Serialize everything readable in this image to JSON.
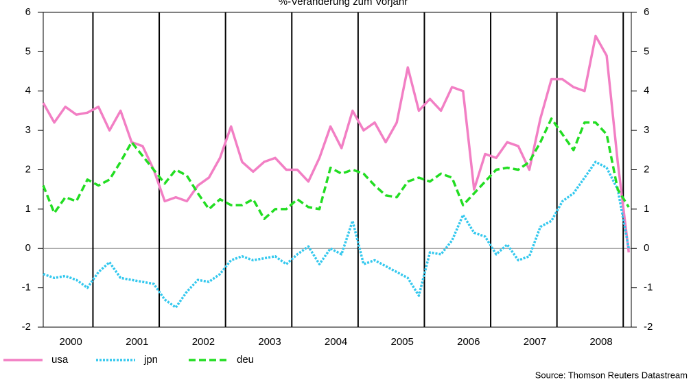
{
  "chart_data": {
    "type": "line",
    "title": "%-Veränderung zum Vorjahr",
    "source": "Source: Thomson Reuters Datastream",
    "categories": [
      null,
      null,
      "2000",
      null,
      null,
      null,
      null,
      null,
      "2001",
      null,
      null,
      null,
      null,
      null,
      "2002",
      null,
      null,
      null,
      null,
      null,
      "2003",
      null,
      null,
      null,
      null,
      null,
      "2004",
      null,
      null,
      null,
      null,
      null,
      "2005",
      null,
      null,
      null,
      null,
      null,
      "2006",
      null,
      null,
      null,
      null,
      null,
      "2007",
      null,
      null,
      null,
      null,
      null,
      "2008",
      null,
      null,
      null
    ],
    "series": [
      {
        "name": "usa",
        "color": "#f27fc4",
        "dash": "none",
        "values": [
          3.7,
          3.2,
          3.6,
          3.4,
          3.45,
          3.6,
          3.0,
          3.5,
          2.7,
          2.6,
          2.0,
          1.2,
          1.3,
          1.2,
          1.6,
          1.8,
          2.3,
          3.1,
          2.2,
          1.95,
          2.2,
          2.3,
          2.0,
          2.0,
          1.7,
          2.3,
          3.1,
          2.55,
          3.5,
          3.0,
          3.2,
          2.7,
          3.2,
          4.6,
          3.5,
          3.8,
          3.5,
          4.1,
          4.0,
          1.5,
          2.4,
          2.3,
          2.7,
          2.6,
          2.0,
          3.3,
          4.3,
          4.3,
          4.1,
          4.0,
          5.4,
          4.9,
          2.2,
          -0.1
        ]
      },
      {
        "name": "jpn",
        "color": "#33c8ee",
        "dash": "3,2",
        "values": [
          -0.65,
          -0.75,
          -0.7,
          -0.8,
          -1.0,
          -0.6,
          -0.35,
          -0.75,
          -0.8,
          -0.85,
          -0.9,
          -1.3,
          -1.5,
          -1.1,
          -0.8,
          -0.85,
          -0.65,
          -0.3,
          -0.2,
          -0.3,
          -0.25,
          -0.2,
          -0.4,
          -0.15,
          0.05,
          -0.4,
          0.0,
          -0.15,
          0.7,
          -0.4,
          -0.3,
          -0.45,
          -0.6,
          -0.75,
          -1.2,
          -0.1,
          -0.15,
          0.2,
          0.85,
          0.4,
          0.3,
          -0.15,
          0.1,
          -0.3,
          -0.2,
          0.55,
          0.7,
          1.2,
          1.4,
          1.8,
          2.2,
          2.05,
          1.5,
          0.0
        ]
      },
      {
        "name": "deu",
        "color": "#22dd22",
        "dash": "10,5",
        "values": [
          1.6,
          0.9,
          1.3,
          1.2,
          1.75,
          1.6,
          1.75,
          2.2,
          2.7,
          2.35,
          2.0,
          1.65,
          2.0,
          1.85,
          1.4,
          1.0,
          1.25,
          1.1,
          1.1,
          1.25,
          0.75,
          1.0,
          1.0,
          1.25,
          1.05,
          1.0,
          2.05,
          1.9,
          2.0,
          1.9,
          1.6,
          1.35,
          1.3,
          1.7,
          1.8,
          1.7,
          1.9,
          1.8,
          1.1,
          1.4,
          1.7,
          2.0,
          2.05,
          2.0,
          2.2,
          2.7,
          3.3,
          2.9,
          2.5,
          3.2,
          3.2,
          2.9,
          1.5,
          1.05
        ]
      }
    ],
    "ylim": [
      -2,
      6
    ],
    "yticks": [
      -2,
      -1,
      0,
      1,
      2,
      3,
      4,
      5,
      6
    ]
  }
}
